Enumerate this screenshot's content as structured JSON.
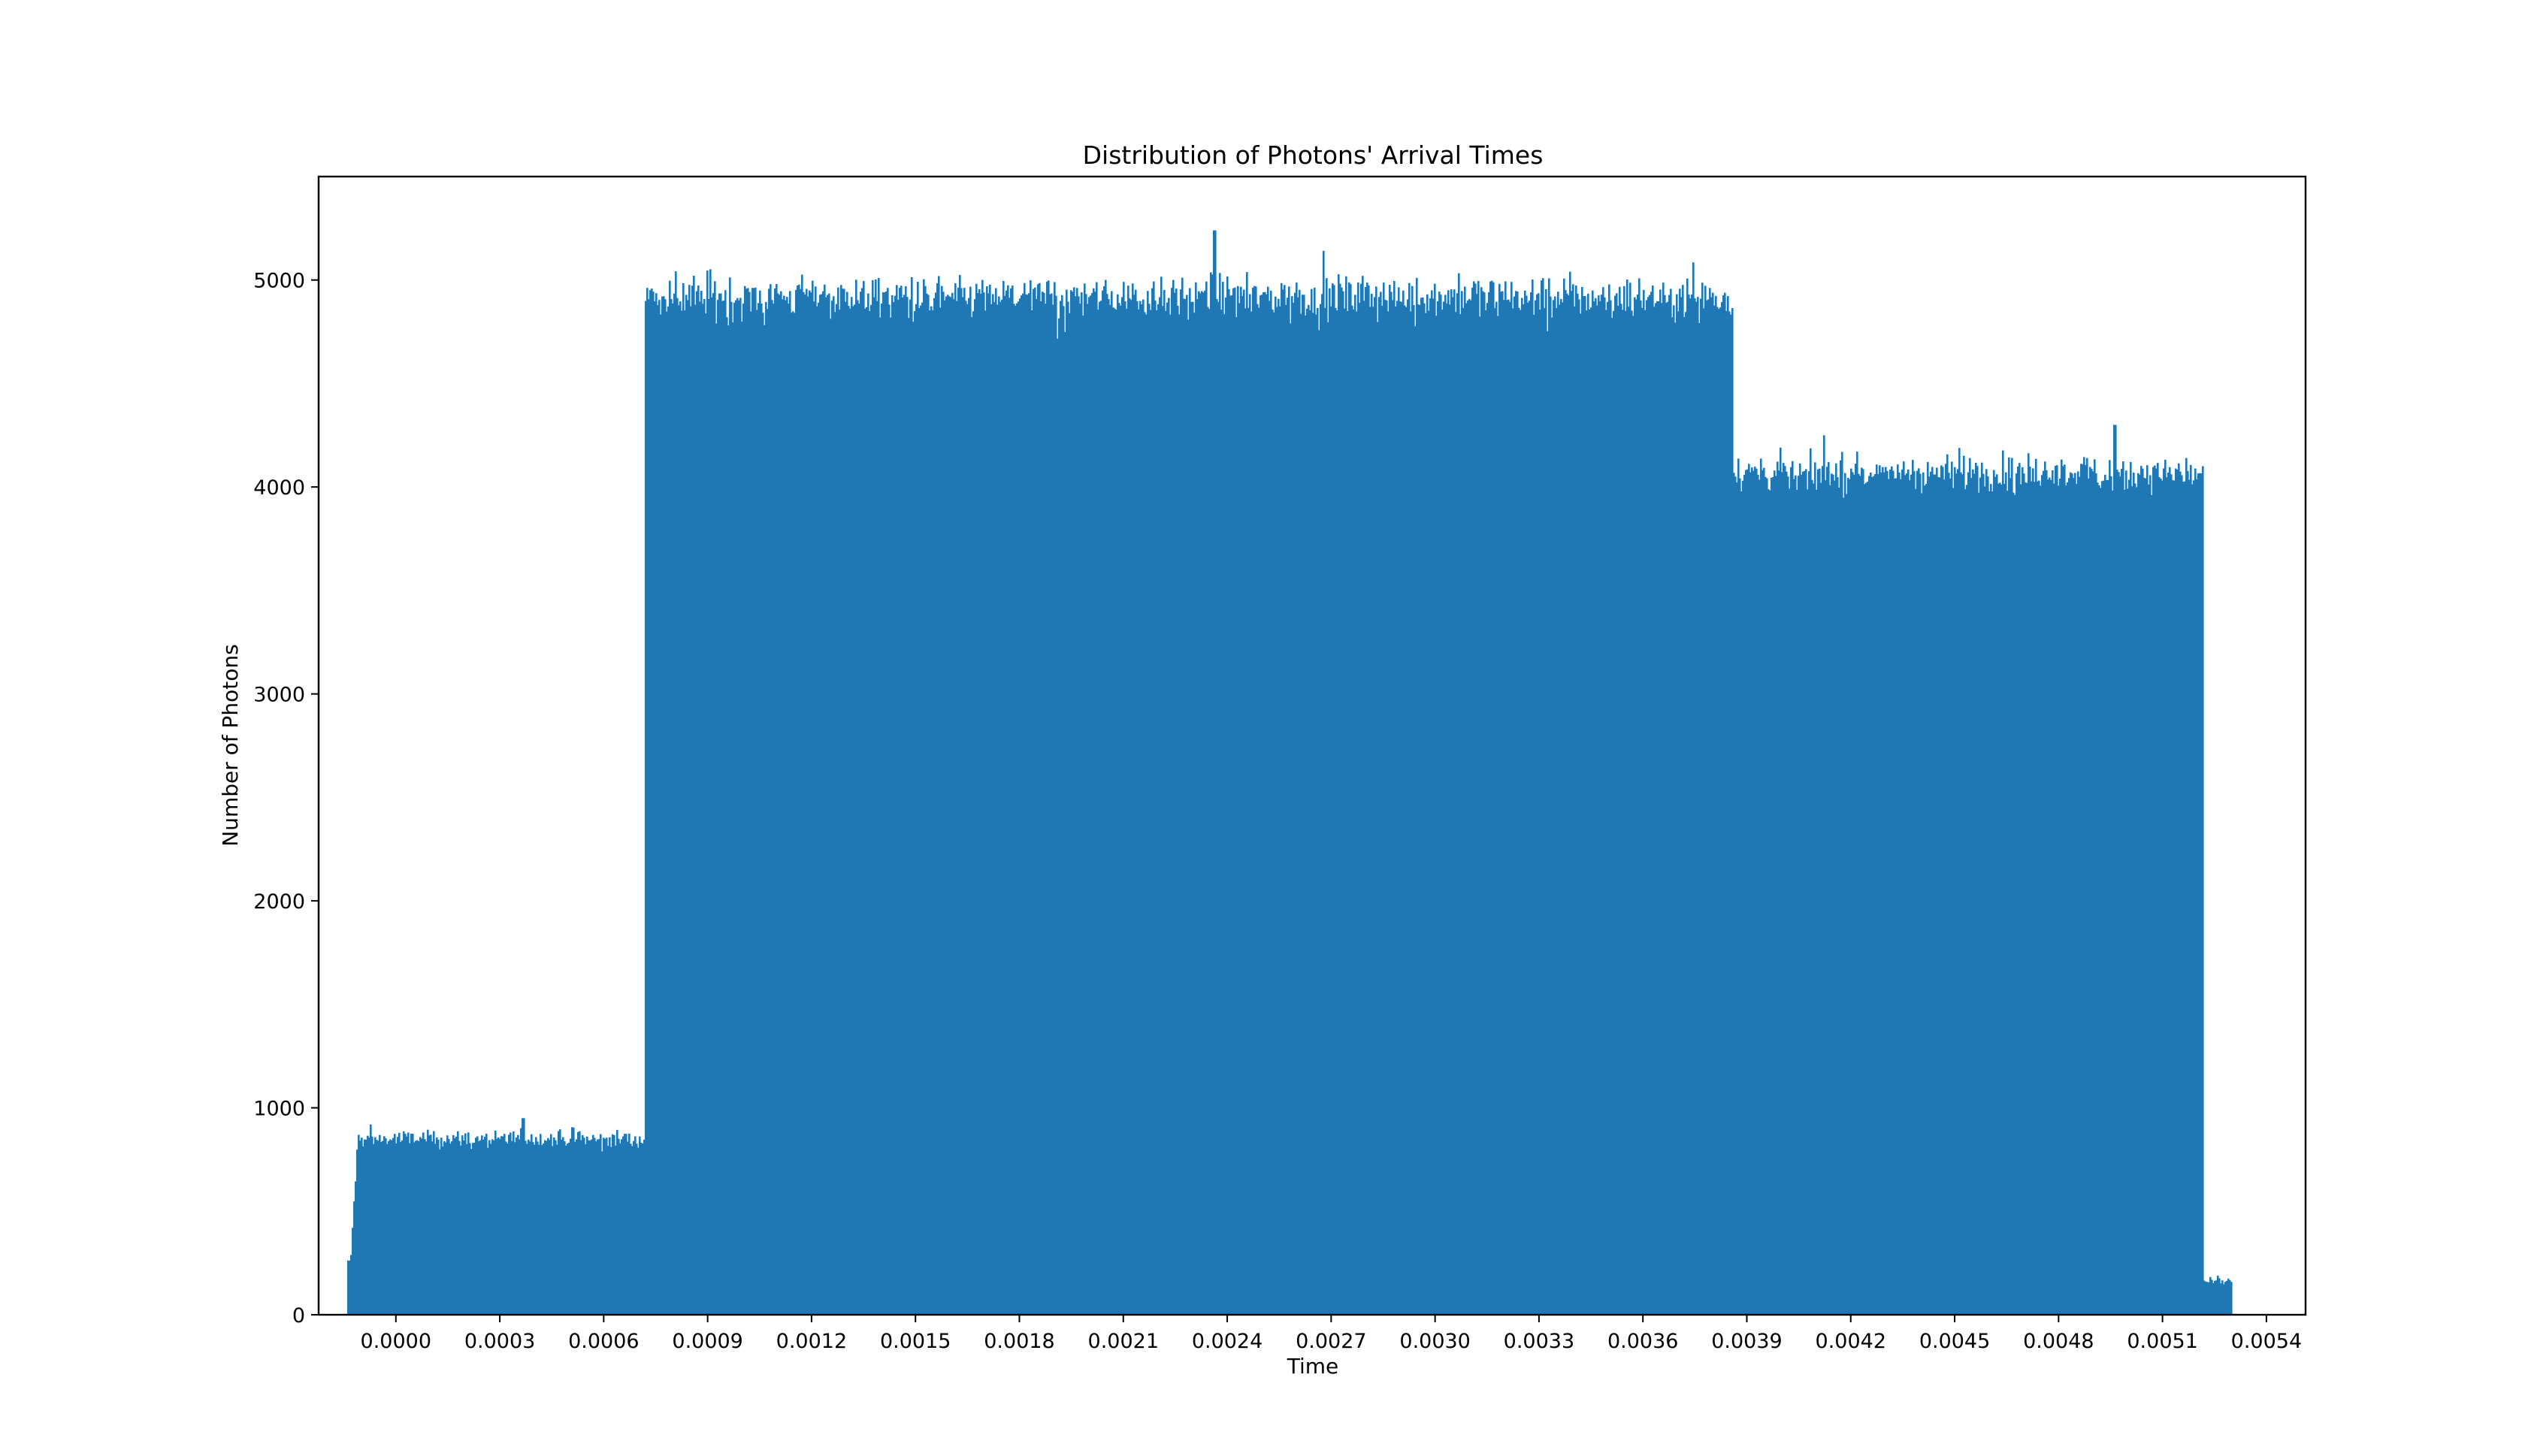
{
  "chart_data": {
    "type": "bar",
    "title": "Distribution of Photons' Arrival Times",
    "xlabel": "Time",
    "ylabel": "Number of Photons",
    "xlim": [
      -0.000223,
      0.005513
    ],
    "ylim": [
      0,
      5500
    ],
    "grid": false,
    "legend": "none",
    "color": "#1f77b4",
    "x_ticks": [
      "0.0000",
      "0.0003",
      "0.0006",
      "0.0009",
      "0.0012",
      "0.0015",
      "0.0018",
      "0.0021",
      "0.0024",
      "0.0027",
      "0.0030",
      "0.0033",
      "0.0036",
      "0.0039",
      "0.0042",
      "0.0045",
      "0.0048",
      "0.0051",
      "0.0054"
    ],
    "y_ticks": [
      "0",
      "1000",
      "2000",
      "3000",
      "4000",
      "5000"
    ],
    "x_tick_values": [
      0.0,
      0.0003,
      0.0006,
      0.0009,
      0.0012,
      0.0015,
      0.0018,
      0.0021,
      0.0024,
      0.0027,
      0.003,
      0.0033,
      0.0036,
      0.0039,
      0.0042,
      0.0045,
      0.0048,
      0.0051,
      0.0054
    ],
    "y_tick_values": [
      0,
      1000,
      2000,
      3000,
      4000,
      5000
    ],
    "segments": [
      {
        "x_start": -0.00014,
        "x_end": 0.00072,
        "level": 850,
        "noise": 40
      },
      {
        "x_start": 0.00072,
        "x_end": 0.00386,
        "level": 4920,
        "noise": 90
      },
      {
        "x_start": 0.00386,
        "x_end": 0.00522,
        "level": 4070,
        "noise": 80
      },
      {
        "x_start": 0.00522,
        "x_end": 0.0053,
        "level": 160,
        "noise": 15
      }
    ],
    "peak_values": [
      {
        "x": 0.000365,
        "y": 950
      },
      {
        "x": 0.00236,
        "y": 5240
      },
      {
        "x": 0.00496,
        "y": 4300
      }
    ]
  }
}
